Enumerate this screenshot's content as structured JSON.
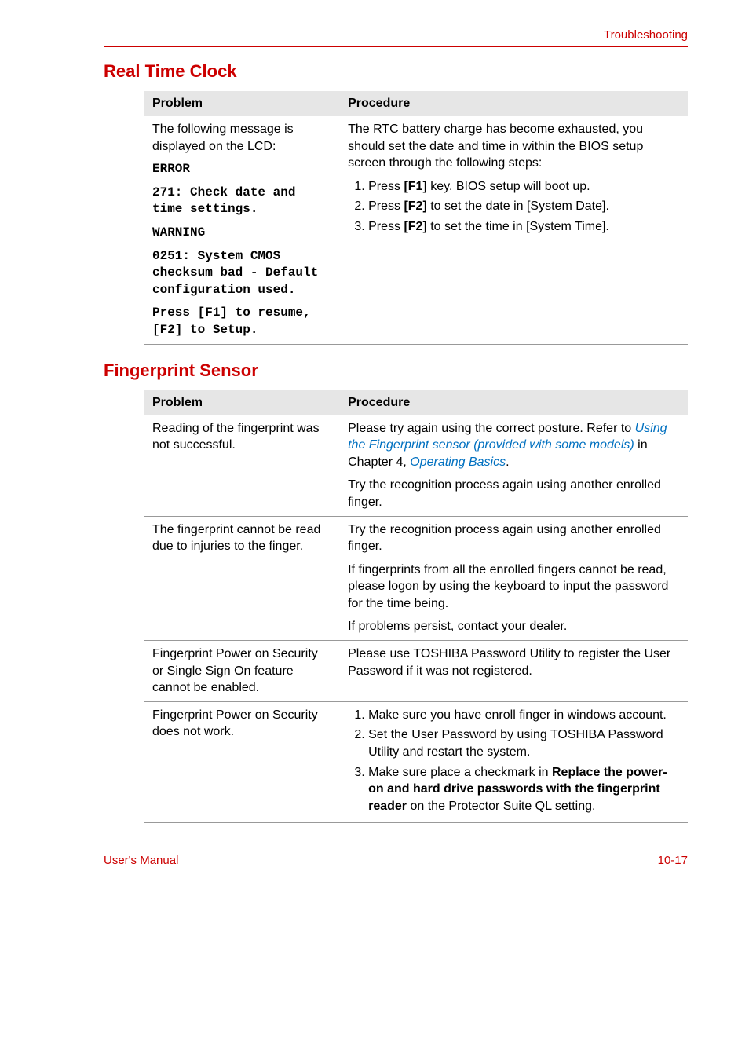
{
  "header": {
    "title": "Troubleshooting"
  },
  "sections": {
    "rtc": {
      "heading": "Real Time Clock",
      "th_problem": "Problem",
      "th_procedure": "Procedure",
      "problem_intro": "The following message is displayed on the LCD:",
      "mono1": "ERROR",
      "mono2": "271: Check date and time settings.",
      "mono3": "WARNING",
      "mono4": "0251: System CMOS checksum bad - Default configuration used.",
      "mono5": "Press [F1] to resume, [F2] to Setup.",
      "proc_intro": "The RTC battery charge has become exhausted, you should set the date and time in within the BIOS setup screen through the following steps:",
      "step1a": "Press ",
      "step1b": "[F1]",
      "step1c": " key. BIOS setup will boot up.",
      "step2a": "Press ",
      "step2b": "[F2]",
      "step2c": " to set the date in [System Date].",
      "step3a": "Press ",
      "step3b": "[F2]",
      "step3c": " to set the time in [System Time]."
    },
    "fp": {
      "heading": "Fingerprint Sensor",
      "th_problem": "Problem",
      "th_procedure": "Procedure",
      "r1_prob": "Reading of the fingerprint was not successful.",
      "r1_p1a": "Please try again using the correct posture. Refer to ",
      "r1_link1": "Using the Fingerprint sensor (provided with some models)",
      "r1_p1b": " in Chapter 4, ",
      "r1_link2": "Operating Basics",
      "r1_p1c": ".",
      "r1_p2": "Try the recognition process again using another enrolled finger.",
      "r2_prob": "The fingerprint cannot be read due to injuries to the finger.",
      "r2_p1": "Try the recognition process again using another enrolled finger.",
      "r2_p2": "If fingerprints from all the enrolled fingers cannot be read, please logon by using the keyboard to input the password for the time being.",
      "r2_p3": "If problems persist, contact your dealer.",
      "r3_prob": "Fingerprint Power on Security or Single Sign On feature cannot be enabled.",
      "r3_p1": "Please use TOSHIBA Password Utility to register the User Password if it was not registered.",
      "r4_prob": "Fingerprint Power on Security does not work.",
      "r4_s1": "Make sure you have enroll finger in windows account.",
      "r4_s2": "Set the User Password by using TOSHIBA Password Utility and restart the system.",
      "r4_s3a": "Make sure place a checkmark in ",
      "r4_s3b": "Replace the power-on and hard drive passwords with the fingerprint reader",
      "r4_s3c": " on the Protector Suite QL setting."
    }
  },
  "footer": {
    "left": "User's Manual",
    "right": "10-17"
  }
}
